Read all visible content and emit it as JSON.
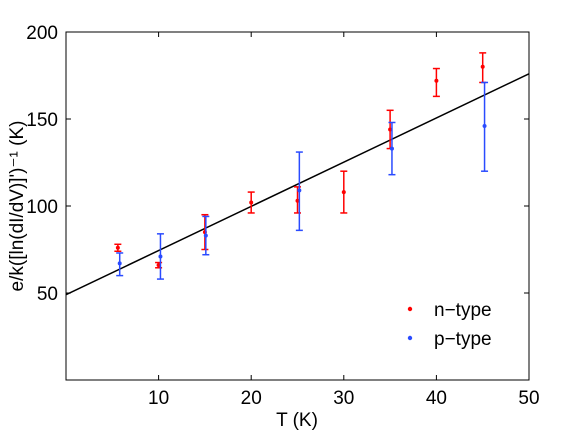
{
  "chart_data": {
    "type": "scatter",
    "xlabel": "T (K)",
    "ylabel": "e/k([ln(dI/dV)]')⁻¹ (K)",
    "xlim": [
      0,
      50
    ],
    "ylim": [
      0,
      200
    ],
    "xticks": [
      10,
      20,
      30,
      40,
      50
    ],
    "yticks": [
      50,
      100,
      150,
      200
    ],
    "legend_position": "bottom-right",
    "series": [
      {
        "name": "n−type",
        "color": "#ff0000",
        "points": [
          {
            "x": 5.6,
            "y": 76,
            "low": 74,
            "high": 78
          },
          {
            "x": 10,
            "y": 66,
            "low": 64.5,
            "high": 67.5
          },
          {
            "x": 15,
            "y": 85,
            "low": 75,
            "high": 95
          },
          {
            "x": 20,
            "y": 102,
            "low": 96,
            "high": 108
          },
          {
            "x": 25,
            "y": 103,
            "low": 96,
            "high": 111
          },
          {
            "x": 30,
            "y": 108,
            "low": 96,
            "high": 120
          },
          {
            "x": 35,
            "y": 144,
            "low": 133,
            "high": 155
          },
          {
            "x": 40,
            "y": 172,
            "low": 163,
            "high": 179
          },
          {
            "x": 45,
            "y": 180,
            "low": 171,
            "high": 188
          }
        ]
      },
      {
        "name": "p−type",
        "color": "#2a4bff",
        "points": [
          {
            "x": 5.8,
            "y": 67,
            "low": 60,
            "high": 73
          },
          {
            "x": 10.2,
            "y": 71,
            "low": 58,
            "high": 84
          },
          {
            "x": 15.1,
            "y": 83,
            "low": 72,
            "high": 94
          },
          {
            "x": 25.2,
            "y": 109,
            "low": 86,
            "high": 131
          },
          {
            "x": 35.2,
            "y": 133,
            "low": 118,
            "high": 148
          },
          {
            "x": 45.2,
            "y": 146,
            "low": 120,
            "high": 171
          }
        ]
      }
    ],
    "fit_line": {
      "color": "#000000",
      "x": [
        0,
        50
      ],
      "y": [
        49,
        176
      ]
    }
  }
}
